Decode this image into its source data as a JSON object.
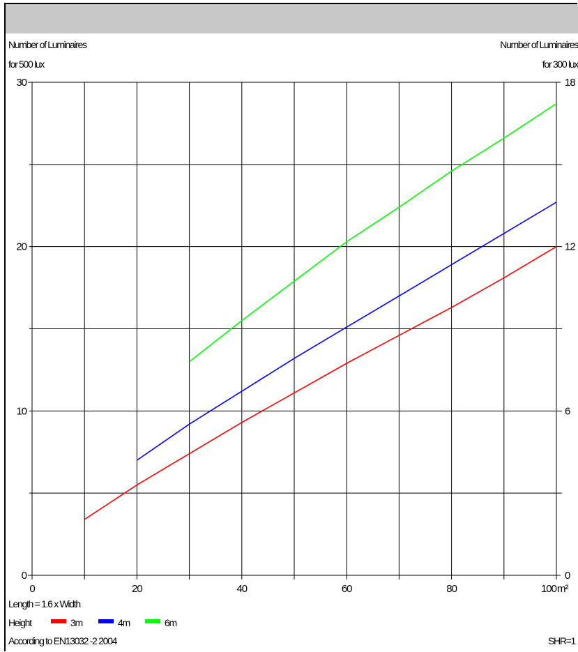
{
  "header": {
    "left_axis_title_line1": "Number of Luminaires",
    "left_axis_title_line2": "for 500 lux",
    "right_axis_title_line1": "Number of Luminaires",
    "right_axis_title_line2": "for 300 lux"
  },
  "footer": {
    "length_note": "Length = 1.6 x Width",
    "height_label": "Height",
    "standard_note": "According to EN13032 -2 2004",
    "shr_note": "SHR=1"
  },
  "chart_data": {
    "type": "line",
    "x_unit": "m²",
    "xlim": [
      0,
      100
    ],
    "x_ticks": [
      0,
      20,
      40,
      60,
      80,
      100
    ],
    "x_tick_labels": [
      "0",
      "20",
      "40",
      "60",
      "80",
      "100"
    ],
    "x_grid_step": 10,
    "ylim_left": [
      0,
      30
    ],
    "y_left_ticks": [
      0,
      10,
      20,
      30
    ],
    "y_left_tick_labels": [
      "0",
      "10",
      "20",
      "30"
    ],
    "ylim_right": [
      0,
      18
    ],
    "y_right_ticks": [
      0,
      6,
      12,
      18
    ],
    "y_right_tick_labels": [
      "0",
      "6",
      "12",
      "18"
    ],
    "y_grid_step": 5,
    "grid": true,
    "legend_position": "bottom-left",
    "series": [
      {
        "name": "3m",
        "color": "#ff0000",
        "x": [
          10,
          20,
          30,
          40,
          50,
          60,
          70,
          80,
          90,
          100
        ],
        "y": [
          3.4,
          5.5,
          7.4,
          9.3,
          11.1,
          12.9,
          14.6,
          16.3,
          18.1,
          20.0
        ]
      },
      {
        "name": "4m",
        "color": "#0000ff",
        "x": [
          20,
          30,
          40,
          50,
          60,
          70,
          80,
          90,
          100
        ],
        "y": [
          7.0,
          9.2,
          11.2,
          13.2,
          15.1,
          17.0,
          18.9,
          20.8,
          22.7
        ]
      },
      {
        "name": "6m",
        "color": "#00ff00",
        "x": [
          30,
          40,
          50,
          60,
          70,
          80,
          90,
          100
        ],
        "y": [
          13.0,
          15.5,
          17.9,
          20.3,
          22.4,
          24.6,
          26.6,
          28.7
        ]
      }
    ]
  }
}
